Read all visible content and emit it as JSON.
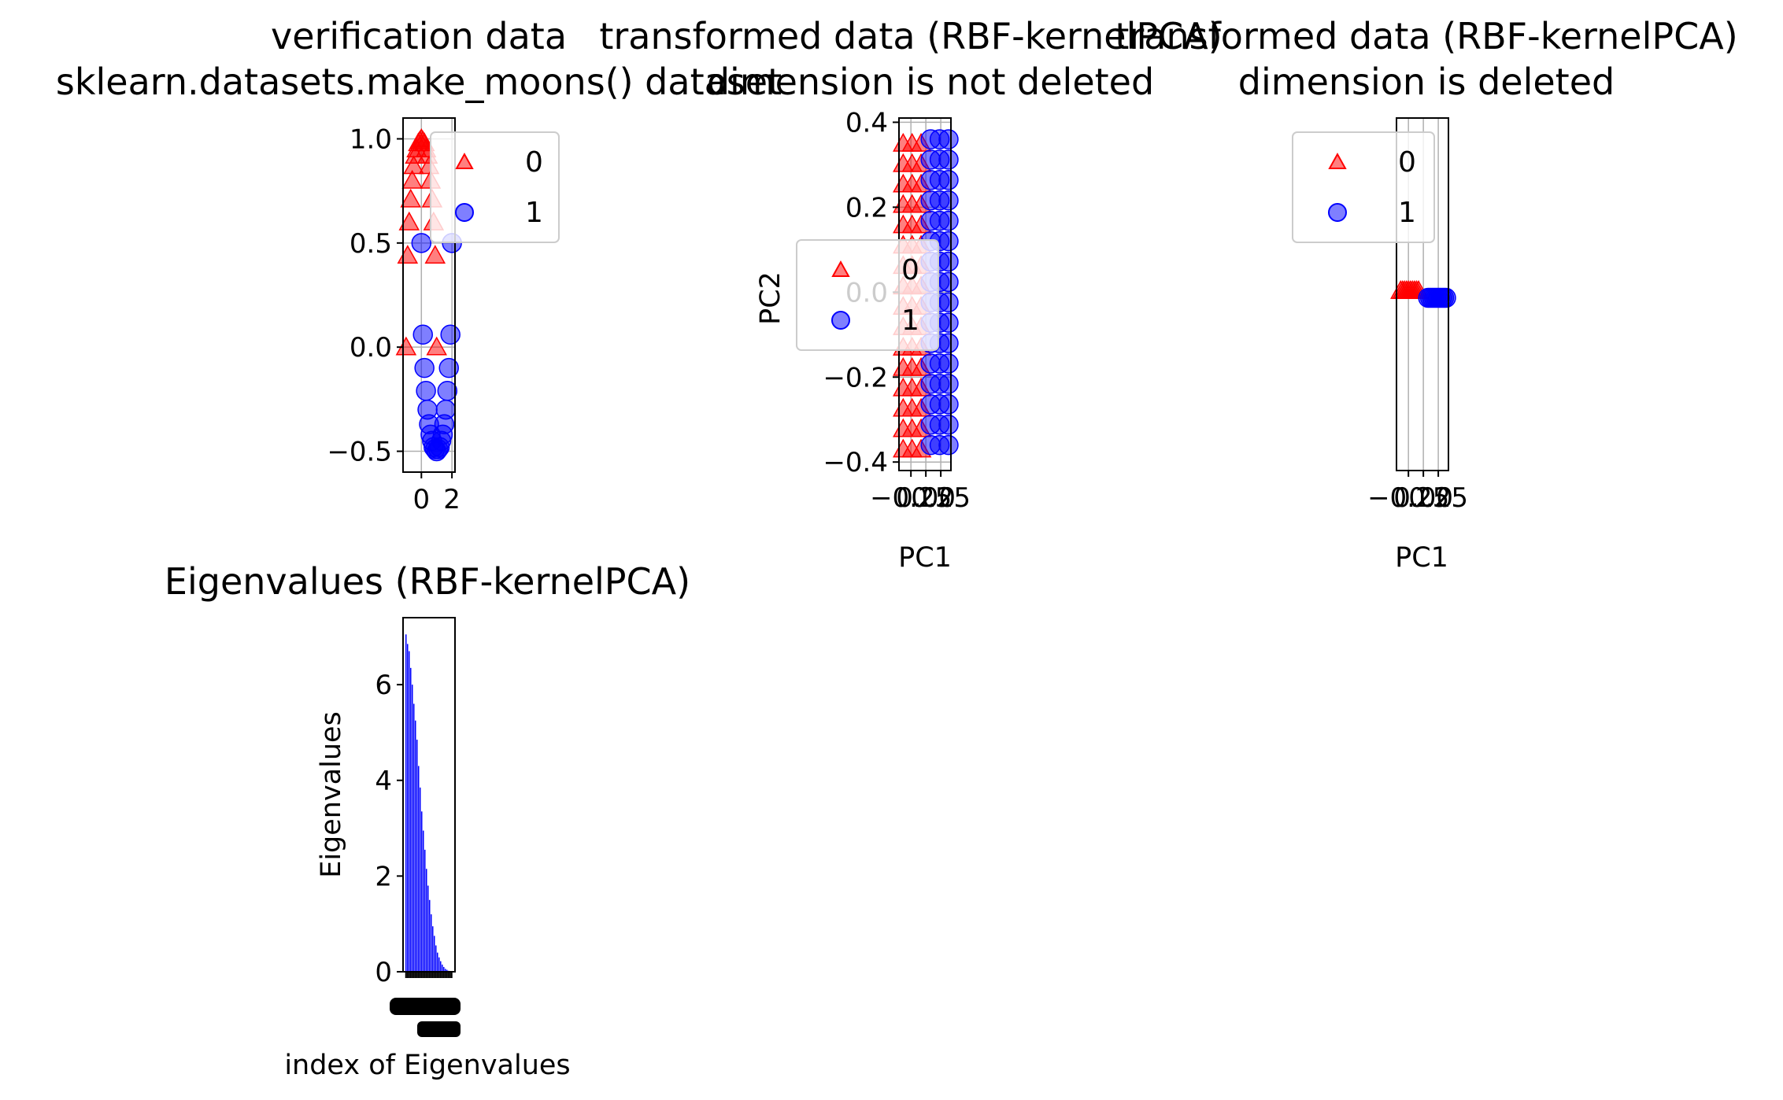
{
  "figure": {
    "colors": {
      "class0": "#ff0000",
      "class1": "#0000ff",
      "axis": "#000000",
      "grid": "#b0b0b0"
    }
  },
  "chart_data": [
    {
      "id": "verification",
      "type": "scatter",
      "title_lines": [
        "verification data",
        "sklearn.datasets.make_moons() dataset"
      ],
      "xlabel": "",
      "ylabel": "",
      "xlim": [
        -1.2,
        2.2
      ],
      "ylim": [
        -0.6,
        1.1
      ],
      "xticks": [
        0,
        2
      ],
      "yticks": [
        -0.5,
        0.0,
        0.5,
        1.0
      ],
      "ytick_labels": [
        "−0.5",
        "0.0",
        "0.5",
        "1.0"
      ],
      "xtick_labels": [
        "0",
        "2"
      ],
      "grid": true,
      "legend": {
        "placement": "upper-right",
        "entries": [
          "0",
          "1"
        ]
      },
      "series": [
        {
          "name": "0",
          "marker": "triangle",
          "color": "#ff0000",
          "x": [
            -1.0,
            -0.9,
            -0.8,
            -0.7,
            -0.6,
            -0.5,
            -0.4,
            -0.3,
            -0.2,
            -0.1,
            0.0,
            0.1,
            0.2,
            0.3,
            0.4,
            0.5,
            0.6,
            0.7,
            0.8,
            0.9,
            1.0
          ],
          "y": [
            0.0,
            0.44,
            0.6,
            0.71,
            0.8,
            0.87,
            0.92,
            0.95,
            0.98,
            0.99,
            1.0,
            0.99,
            0.98,
            0.95,
            0.92,
            0.87,
            0.8,
            0.71,
            0.6,
            0.44,
            0.0
          ]
        },
        {
          "name": "1",
          "marker": "circle",
          "color": "#0000ff",
          "x": [
            0.0,
            0.1,
            0.2,
            0.3,
            0.4,
            0.5,
            0.6,
            0.7,
            0.8,
            0.9,
            1.0,
            1.1,
            1.2,
            1.3,
            1.4,
            1.5,
            1.6,
            1.7,
            1.8,
            1.9,
            2.0
          ],
          "y": [
            0.5,
            0.06,
            -0.1,
            -0.21,
            -0.3,
            -0.37,
            -0.42,
            -0.45,
            -0.48,
            -0.49,
            -0.5,
            -0.49,
            -0.48,
            -0.45,
            -0.42,
            -0.37,
            -0.3,
            -0.21,
            -0.1,
            0.06,
            0.5
          ]
        }
      ]
    },
    {
      "id": "transformed-not-deleted",
      "type": "scatter",
      "title_lines": [
        "transformed data (RBF-kernelPCA)",
        "dimension is not deleted"
      ],
      "xlabel": "PC1",
      "ylabel": "PC2",
      "xlim": [
        -0.45,
        0.42
      ],
      "ylim": [
        -0.42,
        0.41
      ],
      "yticks": [
        -0.4,
        -0.2,
        0.0,
        0.2,
        0.4
      ],
      "ytick_labels": [
        "−0.4",
        "−0.2",
        "0.0",
        "0.2",
        "0.4"
      ],
      "xticks": [
        -0.25,
        0.0,
        0.25
      ],
      "xtick_labels": [
        "−0.25",
        "0.00",
        "0.25"
      ],
      "grid": true,
      "legend": {
        "placement": "center-left",
        "entries": [
          "0",
          "1"
        ]
      },
      "series": [
        {
          "name": "0",
          "marker": "triangle",
          "color": "#ff0000",
          "x_band": [
            -0.38,
            -0.08
          ],
          "y_range": [
            -0.37,
            0.35
          ]
        },
        {
          "name": "1",
          "marker": "circle",
          "color": "#0000ff",
          "x_band": [
            0.08,
            0.38
          ],
          "y_range": [
            -0.36,
            0.36
          ]
        }
      ]
    },
    {
      "id": "transformed-deleted",
      "type": "scatter",
      "title_lines": [
        "transformed data (RBF-kernelPCA)",
        "dimension is deleted"
      ],
      "xlabel": "PC1",
      "ylabel": "",
      "xlim": [
        -0.45,
        0.42
      ],
      "ylim": [
        -1.0,
        1.0
      ],
      "xticks": [
        -0.25,
        0.0,
        0.25
      ],
      "xtick_labels": [
        "−0.25",
        "0.00",
        "0.25"
      ],
      "grid": true,
      "legend": {
        "placement": "upper-left",
        "entries": [
          "0",
          "1"
        ]
      },
      "series": [
        {
          "name": "0",
          "marker": "triangle",
          "color": "#ff0000",
          "x_band": [
            -0.38,
            -0.08
          ],
          "y": 0.02
        },
        {
          "name": "1",
          "marker": "circle",
          "color": "#0000ff",
          "x_band": [
            0.08,
            0.38
          ],
          "y": -0.02
        }
      ]
    },
    {
      "id": "eigenvalues",
      "type": "bar",
      "title": "Eigenvalues (RBF-kernelPCA)",
      "xlabel": "index of Eigenvalues",
      "ylabel": "Eigenvalues",
      "ylim": [
        0,
        7.4
      ],
      "yticks": [
        0,
        2,
        4,
        6
      ],
      "ytick_labels": [
        "0",
        "2",
        "4",
        "6"
      ],
      "color": "#0000ff",
      "values": [
        7.05,
        6.85,
        6.7,
        6.35,
        6.0,
        5.6,
        5.25,
        4.85,
        4.3,
        3.85,
        3.35,
        2.95,
        2.55,
        2.15,
        1.8,
        1.5,
        1.2,
        0.95,
        0.75,
        0.55,
        0.4,
        0.3,
        0.22,
        0.15,
        0.1,
        0.06,
        0.04,
        0.02,
        0.01,
        0.01
      ]
    }
  ]
}
